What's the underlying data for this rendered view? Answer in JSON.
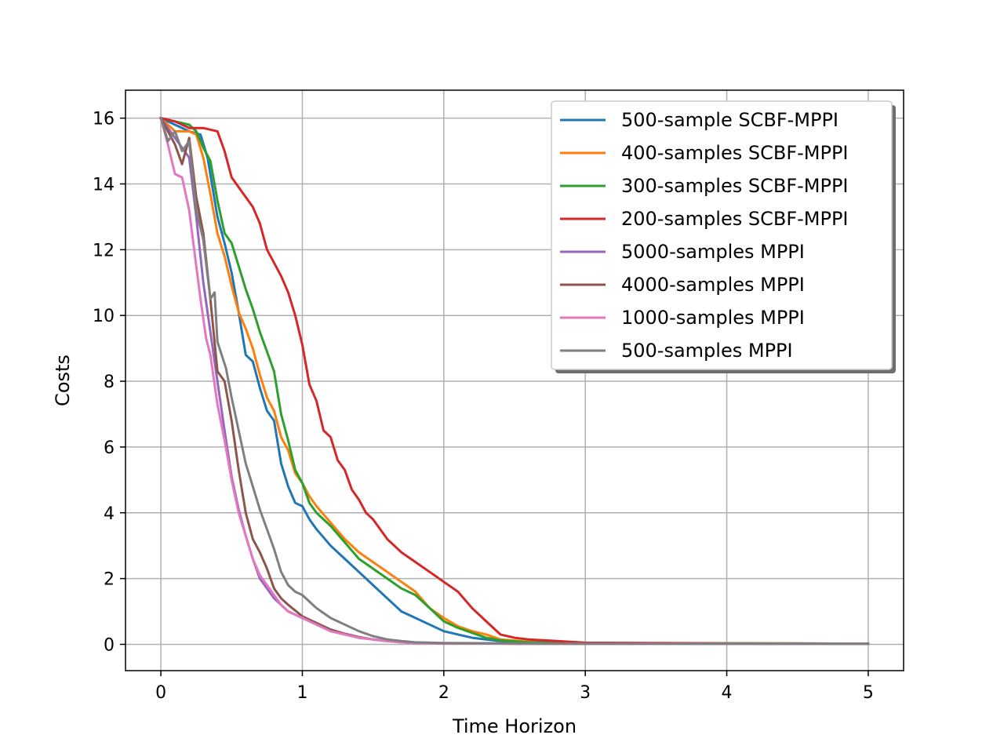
{
  "chart_data": {
    "type": "line",
    "title": "",
    "xlabel": "Time Horizon",
    "ylabel": "Costs",
    "xlim": [
      -0.25,
      5.25
    ],
    "ylim": [
      -0.8,
      16.85
    ],
    "xticks": [
      0,
      1,
      2,
      3,
      4,
      5
    ],
    "yticks": [
      0,
      2,
      4,
      6,
      8,
      10,
      12,
      14,
      16
    ],
    "grid": true,
    "legend_position": "top-right",
    "series": [
      {
        "name": "500-sample SCBF-MPPI",
        "color": "#1f77b4",
        "x": [
          0,
          0.1,
          0.2,
          0.28,
          0.33,
          0.4,
          0.45,
          0.5,
          0.55,
          0.6,
          0.65,
          0.7,
          0.75,
          0.8,
          0.85,
          0.9,
          0.95,
          1.0,
          1.05,
          1.1,
          1.2,
          1.3,
          1.4,
          1.5,
          1.6,
          1.7,
          1.8,
          1.9,
          2.0,
          2.1,
          2.2,
          2.3,
          2.4,
          2.6,
          3.0,
          4.0,
          5.0
        ],
        "y": [
          16.0,
          15.8,
          15.6,
          15.5,
          14.8,
          13.0,
          12.2,
          11.3,
          10.1,
          8.8,
          8.6,
          7.8,
          7.1,
          6.8,
          5.5,
          4.8,
          4.3,
          4.2,
          3.8,
          3.5,
          3.0,
          2.6,
          2.2,
          1.8,
          1.4,
          1.0,
          0.8,
          0.6,
          0.4,
          0.3,
          0.2,
          0.15,
          0.1,
          0.05,
          0.03,
          0.02,
          0.02
        ]
      },
      {
        "name": "400-samples SCBF-MPPI",
        "color": "#ff7f0e",
        "x": [
          0,
          0.1,
          0.2,
          0.25,
          0.3,
          0.35,
          0.4,
          0.45,
          0.5,
          0.55,
          0.6,
          0.65,
          0.7,
          0.75,
          0.8,
          0.85,
          0.9,
          0.95,
          1.0,
          1.05,
          1.1,
          1.2,
          1.3,
          1.4,
          1.5,
          1.6,
          1.7,
          1.8,
          1.9,
          2.0,
          2.1,
          2.2,
          2.3,
          2.4,
          2.6,
          3.0,
          4.0,
          5.0
        ],
        "y": [
          16.0,
          15.6,
          15.6,
          15.5,
          14.8,
          13.7,
          12.5,
          11.8,
          10.9,
          10.1,
          9.6,
          9.0,
          8.2,
          7.5,
          7.1,
          6.3,
          5.9,
          5.2,
          4.9,
          4.5,
          4.2,
          3.7,
          3.2,
          2.8,
          2.5,
          2.2,
          1.9,
          1.6,
          1.1,
          0.8,
          0.55,
          0.4,
          0.3,
          0.15,
          0.08,
          0.04,
          0.03,
          0.02
        ]
      },
      {
        "name": "300-samples SCBF-MPPI",
        "color": "#2ca02c",
        "x": [
          0,
          0.1,
          0.2,
          0.25,
          0.3,
          0.35,
          0.4,
          0.45,
          0.5,
          0.55,
          0.6,
          0.65,
          0.7,
          0.75,
          0.8,
          0.85,
          0.9,
          0.95,
          1.0,
          1.05,
          1.1,
          1.2,
          1.3,
          1.4,
          1.5,
          1.6,
          1.7,
          1.8,
          1.9,
          2.0,
          2.1,
          2.2,
          2.3,
          2.4,
          2.6,
          3.0,
          4.0,
          5.0
        ],
        "y": [
          16.0,
          15.9,
          15.8,
          15.6,
          15.1,
          14.7,
          13.5,
          12.5,
          12.2,
          11.5,
          10.8,
          10.2,
          9.5,
          8.9,
          8.3,
          7.0,
          6.2,
          5.3,
          4.9,
          4.3,
          4.0,
          3.6,
          3.1,
          2.6,
          2.3,
          2.0,
          1.7,
          1.5,
          1.1,
          0.7,
          0.5,
          0.35,
          0.2,
          0.12,
          0.06,
          0.04,
          0.03,
          0.02
        ]
      },
      {
        "name": "200-samples SCBF-MPPI",
        "color": "#d62728",
        "x": [
          0,
          0.1,
          0.2,
          0.3,
          0.4,
          0.45,
          0.5,
          0.55,
          0.6,
          0.65,
          0.7,
          0.75,
          0.8,
          0.85,
          0.9,
          0.95,
          1.0,
          1.05,
          1.1,
          1.15,
          1.2,
          1.25,
          1.3,
          1.35,
          1.4,
          1.45,
          1.5,
          1.6,
          1.7,
          1.8,
          1.9,
          2.0,
          2.1,
          2.2,
          2.3,
          2.4,
          2.5,
          2.6,
          2.8,
          3.0,
          4.0,
          5.0
        ],
        "y": [
          16.0,
          15.9,
          15.7,
          15.7,
          15.6,
          15.0,
          14.2,
          13.9,
          13.6,
          13.3,
          12.8,
          12.0,
          11.6,
          11.2,
          10.7,
          10.0,
          9.1,
          7.9,
          7.4,
          6.5,
          6.3,
          5.6,
          5.3,
          4.7,
          4.4,
          4.0,
          3.8,
          3.2,
          2.8,
          2.5,
          2.2,
          1.9,
          1.6,
          1.1,
          0.7,
          0.3,
          0.2,
          0.15,
          0.1,
          0.05,
          0.03,
          0.02
        ]
      },
      {
        "name": "5000-samples MPPI",
        "color": "#9467bd",
        "x": [
          0,
          0.1,
          0.15,
          0.2,
          0.25,
          0.3,
          0.35,
          0.4,
          0.45,
          0.5,
          0.55,
          0.6,
          0.65,
          0.7,
          0.75,
          0.8,
          0.85,
          0.9,
          1.0,
          1.1,
          1.2,
          1.3,
          1.4,
          1.5,
          1.6,
          1.7,
          1.8,
          2.0,
          2.5,
          3.0,
          4.0,
          5.0
        ],
        "y": [
          16.0,
          15.4,
          15.1,
          14.8,
          13.0,
          11.0,
          9.5,
          8.0,
          6.5,
          5.1,
          4.1,
          3.3,
          2.6,
          2.0,
          1.7,
          1.4,
          1.2,
          1.0,
          0.8,
          0.6,
          0.4,
          0.3,
          0.2,
          0.15,
          0.1,
          0.06,
          0.04,
          0.03,
          0.02,
          0.02,
          0.02,
          0.02
        ]
      },
      {
        "name": "4000-samples MPPI",
        "color": "#8c564b",
        "x": [
          0,
          0.1,
          0.15,
          0.2,
          0.25,
          0.3,
          0.35,
          0.4,
          0.45,
          0.5,
          0.55,
          0.6,
          0.65,
          0.7,
          0.75,
          0.8,
          0.85,
          0.9,
          1.0,
          1.1,
          1.2,
          1.3,
          1.4,
          1.5,
          1.6,
          1.7,
          1.8,
          2.0,
          2.5,
          3.0,
          4.0,
          5.0
        ],
        "y": [
          16.0,
          15.2,
          14.6,
          15.4,
          13.6,
          12.5,
          10.5,
          8.3,
          8.0,
          6.8,
          5.3,
          4.0,
          3.2,
          2.8,
          2.3,
          1.7,
          1.4,
          1.2,
          0.85,
          0.65,
          0.45,
          0.32,
          0.22,
          0.15,
          0.1,
          0.06,
          0.04,
          0.03,
          0.02,
          0.02,
          0.02,
          0.02
        ]
      },
      {
        "name": "1000-samples MPPI",
        "color": "#e377c2",
        "x": [
          0,
          0.05,
          0.1,
          0.15,
          0.2,
          0.25,
          0.28,
          0.32,
          0.35,
          0.4,
          0.45,
          0.5,
          0.55,
          0.6,
          0.65,
          0.7,
          0.75,
          0.8,
          0.85,
          0.9,
          1.0,
          1.1,
          1.2,
          1.3,
          1.4,
          1.5,
          1.6,
          1.7,
          1.8,
          2.0,
          2.5,
          3.0,
          4.0,
          5.0
        ],
        "y": [
          16.0,
          15.2,
          14.3,
          14.2,
          13.2,
          11.5,
          10.5,
          9.3,
          8.8,
          7.3,
          6.2,
          5.0,
          4.0,
          3.3,
          2.6,
          2.1,
          1.8,
          1.5,
          1.2,
          1.0,
          0.8,
          0.6,
          0.4,
          0.3,
          0.2,
          0.15,
          0.1,
          0.06,
          0.04,
          0.03,
          0.02,
          0.02,
          0.02,
          0.02
        ]
      },
      {
        "name": "500-samples MPPI",
        "color": "#7f7f7f",
        "x": [
          0,
          0.05,
          0.1,
          0.15,
          0.2,
          0.25,
          0.3,
          0.35,
          0.38,
          0.4,
          0.43,
          0.46,
          0.5,
          0.55,
          0.6,
          0.65,
          0.7,
          0.75,
          0.8,
          0.85,
          0.9,
          0.95,
          1.0,
          1.05,
          1.1,
          1.2,
          1.3,
          1.4,
          1.5,
          1.6,
          1.7,
          1.8,
          2.0,
          2.5,
          3.0,
          4.0,
          5.0
        ],
        "y": [
          16.0,
          15.3,
          15.6,
          15.0,
          15.3,
          13.2,
          12.3,
          10.5,
          10.7,
          9.2,
          8.8,
          8.4,
          7.5,
          6.5,
          5.5,
          4.8,
          4.1,
          3.5,
          2.9,
          2.2,
          1.8,
          1.6,
          1.5,
          1.3,
          1.1,
          0.8,
          0.6,
          0.4,
          0.25,
          0.15,
          0.1,
          0.06,
          0.04,
          0.03,
          0.02,
          0.02,
          0.02
        ]
      }
    ]
  }
}
